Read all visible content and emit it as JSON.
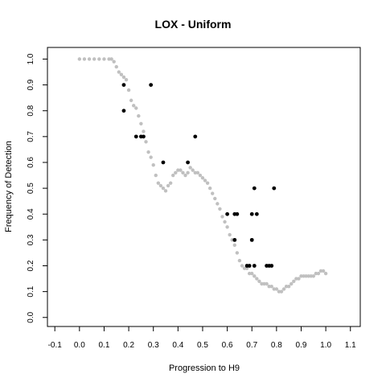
{
  "chart_data": {
    "type": "scatter",
    "title": "LOX - Uniform",
    "xlabel": "Progression to H9",
    "ylabel": "Frequency of Detection",
    "xlim": [
      -0.13,
      1.14
    ],
    "ylim": [
      -0.035,
      1.045
    ],
    "xticks": [
      -0.1,
      0.0,
      0.1,
      0.2,
      0.3,
      0.4,
      0.5,
      0.6,
      0.7,
      0.8,
      0.9,
      1.0,
      1.1
    ],
    "xtick_labels": [
      "-0.1",
      "0.0",
      "0.1",
      "0.2",
      "0.3",
      "0.4",
      "0.5",
      "0.6",
      "0.7",
      "0.8",
      "0.9",
      "1.0",
      "1.1"
    ],
    "yticks": [
      0.0,
      0.1,
      0.2,
      0.3,
      0.4,
      0.5,
      0.6,
      0.7,
      0.8,
      0.9,
      1.0
    ],
    "ytick_labels": [
      "0.0",
      "0.1",
      "0.2",
      "0.3",
      "0.4",
      "0.5",
      "0.6",
      "0.7",
      "0.8",
      "0.9",
      "1.0"
    ],
    "grid": false,
    "series": [
      {
        "marker": "filled-circle",
        "color": "#c0c0c0",
        "points": [
          [
            0.0,
            1.0
          ],
          [
            0.02,
            1.0
          ],
          [
            0.04,
            1.0
          ],
          [
            0.06,
            1.0
          ],
          [
            0.08,
            1.0
          ],
          [
            0.1,
            1.0
          ],
          [
            0.12,
            1.0
          ],
          [
            0.13,
            1.0
          ],
          [
            0.14,
            0.99
          ],
          [
            0.15,
            0.97
          ],
          [
            0.16,
            0.95
          ],
          [
            0.17,
            0.94
          ],
          [
            0.18,
            0.93
          ],
          [
            0.19,
            0.92
          ],
          [
            0.2,
            0.88
          ],
          [
            0.21,
            0.84
          ],
          [
            0.22,
            0.82
          ],
          [
            0.23,
            0.81
          ],
          [
            0.24,
            0.78
          ],
          [
            0.25,
            0.75
          ],
          [
            0.26,
            0.72
          ],
          [
            0.27,
            0.68
          ],
          [
            0.28,
            0.64
          ],
          [
            0.29,
            0.62
          ],
          [
            0.3,
            0.59
          ],
          [
            0.31,
            0.55
          ],
          [
            0.32,
            0.52
          ],
          [
            0.33,
            0.51
          ],
          [
            0.34,
            0.5
          ],
          [
            0.35,
            0.49
          ],
          [
            0.36,
            0.51
          ],
          [
            0.37,
            0.52
          ],
          [
            0.38,
            0.55
          ],
          [
            0.39,
            0.56
          ],
          [
            0.4,
            0.57
          ],
          [
            0.41,
            0.57
          ],
          [
            0.42,
            0.56
          ],
          [
            0.43,
            0.55
          ],
          [
            0.44,
            0.56
          ],
          [
            0.45,
            0.58
          ],
          [
            0.46,
            0.57
          ],
          [
            0.47,
            0.56
          ],
          [
            0.48,
            0.56
          ],
          [
            0.49,
            0.55
          ],
          [
            0.5,
            0.54
          ],
          [
            0.51,
            0.53
          ],
          [
            0.52,
            0.52
          ],
          [
            0.53,
            0.5
          ],
          [
            0.54,
            0.48
          ],
          [
            0.55,
            0.46
          ],
          [
            0.56,
            0.44
          ],
          [
            0.57,
            0.42
          ],
          [
            0.58,
            0.39
          ],
          [
            0.59,
            0.37
          ],
          [
            0.6,
            0.35
          ],
          [
            0.61,
            0.32
          ],
          [
            0.62,
            0.3
          ],
          [
            0.63,
            0.28
          ],
          [
            0.64,
            0.25
          ],
          [
            0.65,
            0.22
          ],
          [
            0.66,
            0.2
          ],
          [
            0.67,
            0.19
          ],
          [
            0.68,
            0.19
          ],
          [
            0.69,
            0.17
          ],
          [
            0.7,
            0.17
          ],
          [
            0.71,
            0.16
          ],
          [
            0.72,
            0.15
          ],
          [
            0.73,
            0.14
          ],
          [
            0.74,
            0.13
          ],
          [
            0.75,
            0.13
          ],
          [
            0.76,
            0.13
          ],
          [
            0.77,
            0.12
          ],
          [
            0.78,
            0.12
          ],
          [
            0.79,
            0.11
          ],
          [
            0.8,
            0.11
          ],
          [
            0.81,
            0.1
          ],
          [
            0.82,
            0.1
          ],
          [
            0.83,
            0.11
          ],
          [
            0.84,
            0.12
          ],
          [
            0.85,
            0.12
          ],
          [
            0.86,
            0.13
          ],
          [
            0.87,
            0.14
          ],
          [
            0.88,
            0.15
          ],
          [
            0.89,
            0.15
          ],
          [
            0.9,
            0.16
          ],
          [
            0.91,
            0.16
          ],
          [
            0.92,
            0.16
          ],
          [
            0.93,
            0.16
          ],
          [
            0.94,
            0.16
          ],
          [
            0.95,
            0.16
          ],
          [
            0.96,
            0.17
          ],
          [
            0.97,
            0.17
          ],
          [
            0.98,
            0.18
          ],
          [
            0.99,
            0.18
          ],
          [
            1.0,
            0.17
          ]
        ]
      },
      {
        "marker": "filled-circle",
        "color": "#000000",
        "points": [
          [
            0.18,
            0.9
          ],
          [
            0.18,
            0.8
          ],
          [
            0.29,
            0.9
          ],
          [
            0.23,
            0.7
          ],
          [
            0.25,
            0.7
          ],
          [
            0.26,
            0.7
          ],
          [
            0.47,
            0.7
          ],
          [
            0.34,
            0.6
          ],
          [
            0.44,
            0.6
          ],
          [
            0.6,
            0.4
          ],
          [
            0.63,
            0.4
          ],
          [
            0.64,
            0.4
          ],
          [
            0.7,
            0.4
          ],
          [
            0.72,
            0.4
          ],
          [
            0.71,
            0.5
          ],
          [
            0.79,
            0.5
          ],
          [
            0.63,
            0.3
          ],
          [
            0.7,
            0.3
          ],
          [
            0.68,
            0.2
          ],
          [
            0.69,
            0.2
          ],
          [
            0.71,
            0.2
          ],
          [
            0.76,
            0.2
          ],
          [
            0.77,
            0.2
          ],
          [
            0.78,
            0.2
          ]
        ]
      }
    ]
  }
}
